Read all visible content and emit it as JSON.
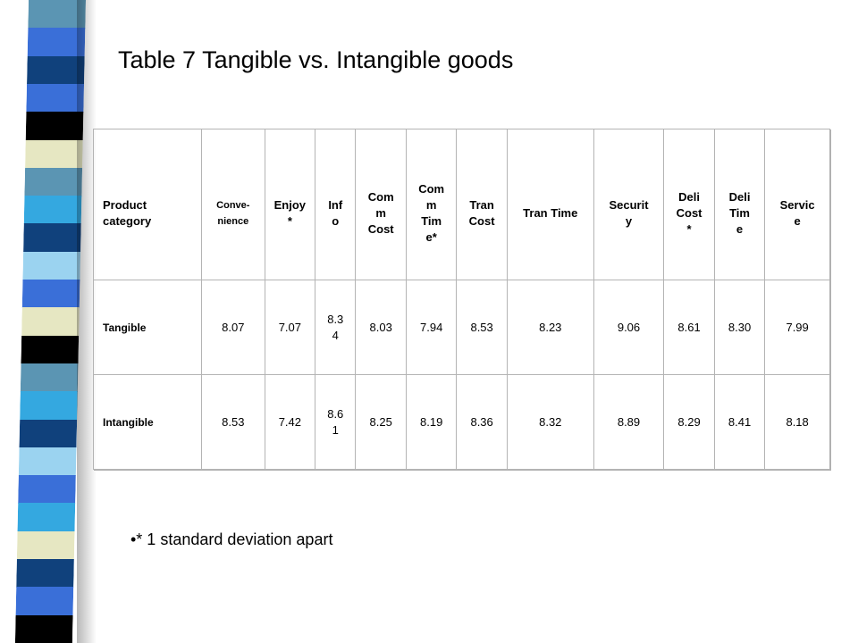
{
  "slide": {
    "title": "Table 7 Tangible vs. Intangible goods",
    "note": "•* 1 standard deviation apart"
  },
  "decoration": {
    "stripe_colors": [
      "#5b95b3",
      "#3a6fd8",
      "#10417c",
      "#3a6fd8",
      "#000000",
      "#e6e7c2",
      "#5b95b3",
      "#34a8e0",
      "#10417c",
      "#9bd3f0",
      "#3a6fd8",
      "#e6e7c2",
      "#000000",
      "#5b95b3",
      "#34a8e0",
      "#10417c",
      "#9bd3f0",
      "#3a6fd8",
      "#34a8e0",
      "#e6e7c2",
      "#10417c",
      "#3a6fd8",
      "#000000"
    ]
  },
  "table": {
    "headers": [
      "Product\ncategory",
      "Conve-\nnience",
      "Enjoy\n*",
      "Inf\no",
      "Com\nm\nCost",
      "Com\nm\nTim\ne*",
      "Tran\nCost",
      "Tran Time",
      "Securit\ny",
      "Deli\nCost\n*",
      "Deli\nTim\ne",
      "Servic\ne"
    ],
    "rows": [
      {
        "label": "Tangible",
        "values": [
          "8.07",
          "7.07",
          "8.3\n4",
          "8.03",
          "7.94",
          "8.53",
          "8.23",
          "9.06",
          "8.61",
          "8.30",
          "7.99"
        ]
      },
      {
        "label": "Intangible",
        "values": [
          "8.53",
          "7.42",
          "8.6\n1",
          "8.25",
          "8.19",
          "8.36",
          "8.32",
          "8.89",
          "8.29",
          "8.41",
          "8.18"
        ]
      }
    ]
  }
}
